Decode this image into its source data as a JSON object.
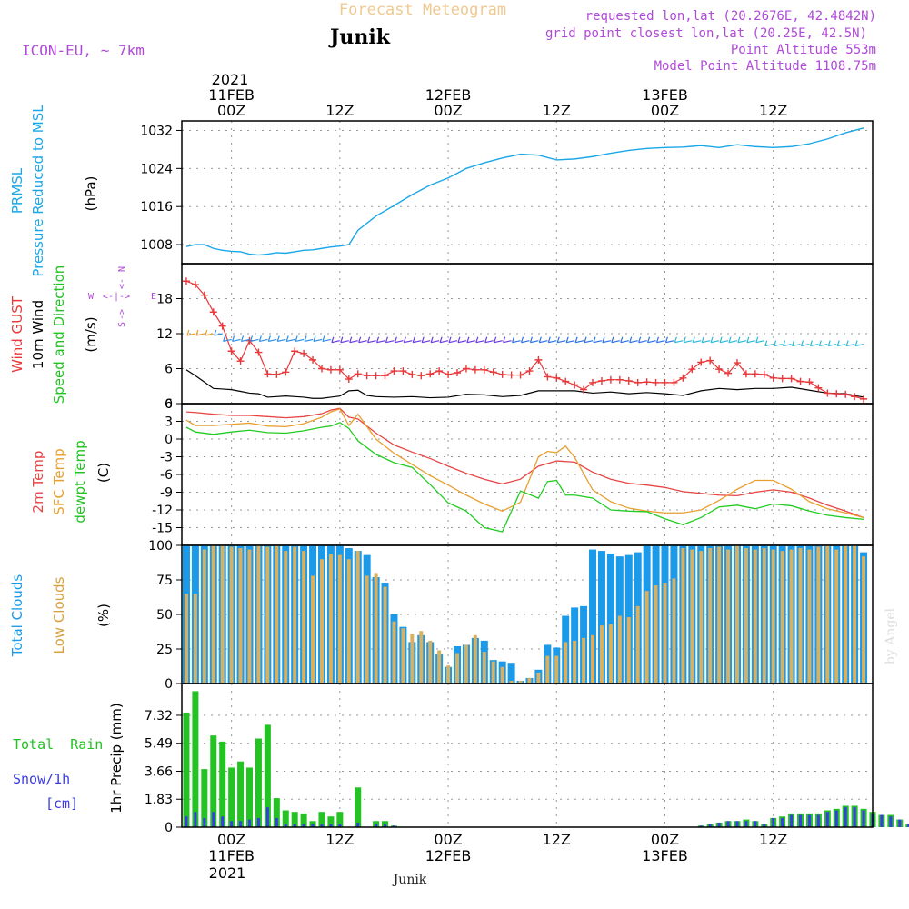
{
  "header": {
    "title": "Forecast Meteogram",
    "location": "Junik",
    "model": "ICON-EU, ~ 7km",
    "requested": "requested lon,lat (20.2676E, 42.4842N)",
    "grid_point": "grid point closest lon,lat (20.25E, 42.5N)",
    "point_altitude": "Point Altitude 553m",
    "model_altitude": "Model Point Altitude 1108.75m",
    "footer_location": "Junik",
    "watermark": "by Angel"
  },
  "time_axis": {
    "year_top": "2021",
    "year_bottom": "2021",
    "ticks": [
      {
        "hour": 0,
        "date": "11FEB",
        "label": "00Z"
      },
      {
        "hour": 12,
        "date": "",
        "label": "12Z"
      },
      {
        "hour": 24,
        "date": "12FEB",
        "label": "00Z"
      },
      {
        "hour": 36,
        "date": "",
        "label": "12Z"
      },
      {
        "hour": 48,
        "date": "13FEB",
        "label": "00Z"
      },
      {
        "hour": 60,
        "date": "",
        "label": "12Z"
      }
    ],
    "range_hours": [
      -5.5,
      71
    ]
  },
  "panel_labels": {
    "pressure": {
      "line1": "PRMSL",
      "line2": "Pressure Reduced to MSL",
      "unit": "(hPa)"
    },
    "wind": {
      "gust": "Wind GUST",
      "wind10": "10m Wind",
      "speed_dir": "Speed and Direction",
      "unit": "(m/s)",
      "compass_n": "N",
      "compass_s": "S",
      "compass_w": "W",
      "compass_e": "E"
    },
    "temp": {
      "t2m": "2m Temp",
      "sfc": "SFC Temp",
      "dewpt": "dewpt Temp",
      "unit": "(C)"
    },
    "clouds": {
      "total": "Total Clouds",
      "low": "Low Clouds",
      "unit": "(%)"
    },
    "precip": {
      "rain": "Total  Rain",
      "snow": "Snow/1h",
      "snow_unit": "[cm]",
      "axis": "1hr Precip (mm)"
    }
  },
  "colors": {
    "pressure": "#1aa7e8",
    "gust": "#e8383a",
    "wind": "#000000",
    "t2m": "#e84545",
    "sfc": "#e8a030",
    "dewpt": "#22cc22",
    "total_clouds": "#1a9ae8",
    "low_clouds": "#d9b060",
    "rain": "#22c322",
    "snow": "#3b3be8",
    "header_orange": "#f0c890",
    "purple": "#b04ad8"
  },
  "chart_data": [
    {
      "type": "line",
      "name": "pressure",
      "ylim": [
        1004,
        1034
      ],
      "yticks": [
        "1008",
        "1016",
        "1024",
        "1032"
      ],
      "series": [
        {
          "name": "PRMSL",
          "x": [
            -5,
            -4,
            -3,
            -2,
            -1,
            0,
            1,
            2,
            3,
            4,
            5,
            6,
            7,
            8,
            9,
            10,
            11,
            12,
            13,
            14,
            16,
            18,
            20,
            22,
            24,
            26,
            28,
            30,
            32,
            34,
            36,
            38,
            40,
            42,
            44,
            46,
            48,
            50,
            52,
            54,
            56,
            58,
            60,
            62,
            64,
            66,
            68,
            70
          ],
          "values": [
            1007.6,
            1008,
            1008,
            1007.2,
            1006.8,
            1006.6,
            1006.5,
            1006,
            1005.8,
            1006,
            1006.3,
            1006.2,
            1006.5,
            1006.8,
            1006.9,
            1007.2,
            1007.5,
            1007.7,
            1008,
            1011,
            1014,
            1016.2,
            1018.5,
            1020.5,
            1022,
            1024,
            1025.2,
            1026.2,
            1027,
            1026.8,
            1025.8,
            1026,
            1026.5,
            1027.2,
            1027.8,
            1028.2,
            1028.4,
            1028.5,
            1028.8,
            1028.4,
            1029,
            1028.6,
            1028.4,
            1028.6,
            1029.2,
            1030.2,
            1031.5,
            1032.5
          ]
        }
      ]
    },
    {
      "type": "line",
      "name": "wind",
      "ylim": [
        0,
        24
      ],
      "yticks": [
        "0",
        "6",
        "12",
        "18"
      ],
      "series": [
        {
          "name": "Wind GUST",
          "x": [
            -5,
            -4,
            -3,
            -2,
            -1,
            0,
            1,
            2,
            3,
            4,
            5,
            6,
            7,
            8,
            9,
            10,
            11,
            12,
            13,
            14,
            15,
            16,
            17,
            18,
            19,
            20,
            21,
            22,
            23,
            24,
            25,
            26,
            27,
            28,
            29,
            30,
            31,
            32,
            33,
            34,
            35,
            36,
            37,
            38,
            39,
            40,
            41,
            42,
            43,
            44,
            45,
            46,
            47,
            48,
            49,
            50,
            51,
            52,
            53,
            54,
            55,
            56,
            57,
            58,
            59,
            60,
            61,
            62,
            63,
            64,
            65,
            66,
            67,
            68,
            69,
            70
          ],
          "values": [
            21,
            20.4,
            18.6,
            15.7,
            13.3,
            9,
            7.3,
            10.8,
            8.8,
            5.1,
            5,
            5.4,
            9,
            8.6,
            7.5,
            6,
            5.8,
            5.8,
            4.2,
            5.1,
            4.8,
            4.8,
            4.8,
            5.6,
            5.6,
            5,
            4.8,
            5.1,
            5.6,
            5,
            5.3,
            6,
            5.8,
            5.8,
            5.4,
            5,
            4.9,
            4.9,
            5.6,
            7.5,
            4.6,
            4.4,
            3.8,
            3.2,
            2.4,
            3.6,
            3.9,
            4.1,
            4.1,
            3.9,
            3.6,
            3.7,
            3.6,
            3.6,
            3.6,
            4.4,
            5.9,
            7.1,
            7.4,
            5.9,
            5.2,
            7,
            5.1,
            5.1,
            5,
            4.4,
            4.3,
            4.3,
            3.8,
            3.7,
            2.7,
            1.8,
            1.7,
            1.6,
            1.2,
            0.8
          ]
        },
        {
          "name": "10m Wind",
          "x": [
            -5,
            -4,
            -3,
            -2,
            -1,
            0,
            1,
            2,
            3,
            4,
            5,
            6,
            7,
            8,
            9,
            10,
            11,
            12,
            13,
            14,
            15,
            16,
            18,
            20,
            22,
            24,
            26,
            28,
            30,
            32,
            34,
            36,
            38,
            40,
            42,
            44,
            46,
            48,
            50,
            52,
            54,
            56,
            58,
            60,
            62,
            64,
            66,
            68,
            70
          ],
          "values": [
            5.8,
            4.8,
            3.7,
            2.6,
            2.5,
            2.4,
            2.1,
            1.8,
            1.7,
            1.1,
            1.2,
            1.3,
            1.2,
            1.1,
            0.9,
            0.9,
            1.1,
            1.3,
            2.2,
            2.3,
            1.4,
            1.2,
            1.1,
            1.2,
            1,
            1.1,
            1.6,
            1.5,
            1.2,
            1.4,
            2.2,
            2.2,
            2.2,
            1.8,
            2,
            1.7,
            1.9,
            1.7,
            1.4,
            2.2,
            2.6,
            2.4,
            2.6,
            2.6,
            2.8,
            2.3,
            1.8,
            1.7,
            1.1
          ]
        }
      ]
    },
    {
      "type": "line",
      "name": "temperature",
      "ylim": [
        -18,
        6
      ],
      "yticks": [
        "6",
        "3",
        "0",
        "-3",
        "-6",
        "-9",
        "-12",
        "-15"
      ],
      "series": [
        {
          "name": "2m Temp",
          "x": [
            -5,
            -4,
            -2,
            0,
            2,
            4,
            6,
            8,
            10,
            11,
            12,
            13,
            14,
            16,
            18,
            20,
            22,
            24,
            26,
            28,
            30,
            32,
            34,
            36,
            38,
            40,
            42,
            44,
            46,
            48,
            50,
            52,
            54,
            56,
            58,
            60,
            62,
            64,
            66,
            68,
            70
          ],
          "values": [
            4.6,
            4.5,
            4.2,
            4,
            4,
            3.8,
            3.6,
            3.8,
            4.3,
            4.9,
            5.2,
            3.7,
            3.4,
            1,
            -1,
            -2.2,
            -3.3,
            -4.6,
            -5.8,
            -6.8,
            -7.6,
            -6.8,
            -4.6,
            -3.7,
            -3.9,
            -5.6,
            -6.8,
            -7.5,
            -7.8,
            -8.2,
            -8.9,
            -9.2,
            -9.5,
            -9.6,
            -9,
            -8.6,
            -9,
            -10,
            -11.2,
            -12.2,
            -13.3
          ]
        },
        {
          "name": "SFC Temp",
          "x": [
            -5,
            -4,
            -2,
            0,
            2,
            4,
            6,
            8,
            10,
            11,
            12,
            13,
            14,
            16,
            18,
            20,
            22,
            24,
            26,
            28,
            30,
            32,
            34,
            35,
            36,
            37,
            38,
            40,
            42,
            44,
            46,
            48,
            50,
            52,
            54,
            56,
            58,
            60,
            62,
            64,
            66,
            68,
            70
          ],
          "values": [
            3.2,
            2.3,
            2.3,
            2.5,
            2.7,
            2.2,
            2.1,
            2.6,
            3.7,
            4.6,
            5.1,
            2.3,
            4.2,
            0,
            -2.4,
            -4.3,
            -6.2,
            -7.8,
            -9.5,
            -11,
            -12.2,
            -10.7,
            -3,
            -2.1,
            -2.3,
            -1.2,
            -3.1,
            -8.6,
            -10.6,
            -11.7,
            -12.2,
            -12.5,
            -12.5,
            -12,
            -10.4,
            -8.5,
            -7,
            -7,
            -8.5,
            -10.6,
            -11.8,
            -12.5,
            -13.3
          ]
        },
        {
          "name": "dewpt Temp",
          "x": [
            -5,
            -4,
            -2,
            0,
            2,
            4,
            6,
            8,
            10,
            11,
            12,
            13,
            14,
            16,
            18,
            20,
            22,
            24,
            26,
            28,
            30,
            32,
            34,
            35,
            36,
            37,
            38,
            40,
            42,
            44,
            46,
            48,
            50,
            52,
            54,
            56,
            58,
            60,
            62,
            64,
            66,
            68,
            70
          ],
          "values": [
            2,
            1.2,
            0.8,
            1.2,
            1.5,
            1.1,
            1,
            1.4,
            2,
            2.2,
            2.8,
            1.8,
            -0.3,
            -2.6,
            -4,
            -4.8,
            -7.7,
            -10.8,
            -12.2,
            -15,
            -15.7,
            -8.8,
            -10,
            -7.2,
            -7,
            -9.5,
            -9.5,
            -10,
            -12,
            -12.2,
            -12.3,
            -13.5,
            -14.5,
            -13.3,
            -11.5,
            -11.2,
            -11.8,
            -11,
            -11.3,
            -12.2,
            -12.9,
            -13.3,
            -13.6
          ]
        }
      ]
    },
    {
      "type": "bar",
      "name": "clouds",
      "ylim": [
        0,
        100
      ],
      "yticks": [
        "0",
        "25",
        "50",
        "75",
        "100"
      ],
      "x_start": -5,
      "x_step": 1,
      "series": [
        {
          "name": "Total Clouds",
          "values": [
            100,
            100,
            100,
            100,
            100,
            100,
            100,
            100,
            100,
            100,
            100,
            100,
            100,
            100,
            100,
            100,
            100,
            100,
            98,
            96,
            93,
            77,
            73,
            50,
            41,
            30,
            35,
            30,
            21,
            12,
            27,
            28,
            33,
            31,
            17,
            16,
            15,
            2,
            4,
            10,
            28,
            26,
            49,
            55,
            56,
            97,
            96,
            94,
            92,
            93,
            95,
            100,
            100,
            100,
            100,
            100,
            100,
            100,
            100,
            100,
            100,
            100,
            100,
            100,
            100,
            100,
            100,
            100,
            100,
            100,
            100,
            100,
            100,
            100,
            100,
            95
          ]
        },
        {
          "name": "Low Clouds",
          "values": [
            65,
            65,
            97,
            100,
            100,
            99,
            98,
            97,
            100,
            99,
            100,
            96,
            99,
            96,
            78,
            90,
            94,
            93,
            90,
            96,
            78,
            80,
            70,
            45,
            40,
            36,
            38,
            31,
            24,
            13,
            22,
            28,
            35,
            23,
            16,
            12,
            2,
            2,
            4,
            8,
            20,
            20,
            30,
            31,
            33,
            35,
            42,
            43,
            49,
            48,
            56,
            67,
            71,
            73,
            76,
            98,
            97,
            96,
            98,
            99,
            97,
            100,
            98,
            97,
            98,
            97,
            96,
            97,
            98,
            97,
            99,
            100,
            97,
            100,
            100,
            92
          ]
        }
      ]
    },
    {
      "type": "bar",
      "name": "precipitation",
      "ylim": [
        0,
        9.4
      ],
      "yticks": [
        "0",
        "1.83",
        "3.66",
        "5.49",
        "7.32"
      ],
      "x_start": -5,
      "x_step": 1,
      "series": [
        {
          "name": "Total Rain",
          "values": [
            7.5,
            8.9,
            3.8,
            6,
            5.6,
            3.9,
            4.3,
            3.9,
            5.8,
            6.7,
            1.9,
            1.1,
            1,
            0.9,
            0.4,
            1,
            0.7,
            1,
            0,
            2.6,
            0,
            0.4,
            0.4,
            0.1,
            0,
            0,
            0,
            0,
            0,
            0,
            0,
            0,
            0,
            0,
            0,
            0,
            0,
            0,
            0,
            0,
            0,
            0,
            0,
            0,
            0,
            0,
            0,
            0,
            0,
            0,
            0,
            0,
            0,
            0,
            0,
            0,
            0,
            0.1,
            0.2,
            0.3,
            0.4,
            0.4,
            0.5,
            0.4,
            0.2,
            0.6,
            0.7,
            0.9,
            0.9,
            0.9,
            0.9,
            1.1,
            1.2,
            1.4,
            1.4,
            1.2,
            1,
            0.8,
            0.8,
            0.5,
            0.2
          ]
        },
        {
          "name": "Snow/1h",
          "values": [
            0.7,
            1,
            0.6,
            1,
            0.7,
            0.4,
            0.4,
            0.5,
            0.6,
            1.3,
            0.6,
            0.2,
            0.2,
            0.2,
            0.2,
            0.2,
            0.2,
            0.2,
            0,
            0.3,
            0,
            0.2,
            0.2,
            0.1,
            0,
            0,
            0,
            0,
            0,
            0,
            0,
            0,
            0,
            0,
            0,
            0,
            0,
            0,
            0,
            0,
            0,
            0,
            0,
            0,
            0,
            0,
            0,
            0,
            0,
            0,
            0,
            0,
            0,
            0,
            0,
            0,
            0,
            0.1,
            0.2,
            0.3,
            0.4,
            0.4,
            0.4,
            0.4,
            0.2,
            0.6,
            0.6,
            0.8,
            0.8,
            0.8,
            0.8,
            1,
            1.1,
            1.3,
            1.3,
            1.1,
            0.9,
            0.8,
            0.7,
            0.5,
            0.2
          ]
        }
      ]
    }
  ]
}
